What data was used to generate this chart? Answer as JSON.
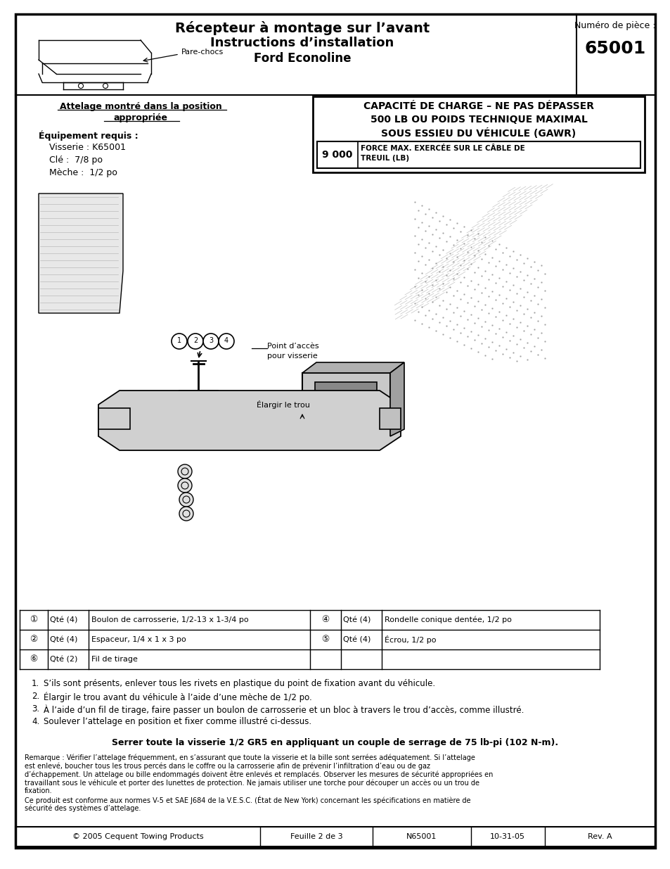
{
  "bg_color": "#ffffff",
  "border_color": "#000000",
  "header": {
    "title_line1": "Récepteur à montage sur l’avant",
    "title_line2": "Instructions d’installation",
    "title_line3": "Ford Econoline",
    "part_label": "Numéro de pièce :",
    "part_number": "65001"
  },
  "capacity_box": {
    "line1": "CAPACITÉ DE CHARGE – NE PAS DÉPASSER",
    "line2": "500 LB OU POIDS TECHNIQUE MAXIMAL",
    "line3": "SOUS ESSIEU DU VÉHICULE (GAWR)",
    "winch_label": "9 000",
    "winch_text_line1": "FORCE MAX. EXERCÉE SUR LE CÂBLE DE",
    "winch_text_line2": "TREUIL (LB)"
  },
  "left_section": {
    "hitch_line1": "Attelage montré dans la position",
    "hitch_line2": "appropriée",
    "equipment_title": "Équipement requis :",
    "equipment_items": [
      "Visserie : K65001",
      "Clé :  7/8 po",
      "Mèche :  1/2 po"
    ],
    "bumper_label": "Pare-chocs"
  },
  "parts_table": {
    "row_symbols": [
      "①",
      "②",
      "⑥"
    ],
    "row_qtys": [
      "Qté (4)",
      "Qté (4)",
      "Qté (2)"
    ],
    "row_descs": [
      "Boulon de carrosserie, 1/2-13 x 1-3/4 po",
      "Espaceur, 1/4 x 1 x 3 po",
      "Fil de tirage"
    ],
    "row_symbols2": [
      "④",
      "⑤",
      ""
    ],
    "row_qtys2": [
      "Qté (4)",
      "Qté (4)",
      ""
    ],
    "row_descs2": [
      "Rondelle conique dentée, 1/2 po",
      "Écrou, 1/2 po",
      ""
    ]
  },
  "instructions": [
    "S’ils sont présents, enlever tous les rivets en plastique du point de fixation avant du véhicule.",
    "Élargir le trou avant du véhicule à l’aide d’une mèche de 1/2 po.",
    "À l’aide d’un fil de tirage, faire passer un boulon de carrosserie et un bloc à travers le trou d’accès, comme illustré.",
    "Soulever l’attelage en position et fixer comme illustré ci-dessus."
  ],
  "torque_note": "Serrer toute la visserie 1/2 GR5 en appliquant un couple de serrage de 75 lb-pi (102 N-m).",
  "warning_para1": "Remarque : Vérifier l’attelage fréquemment, en s’assurant que toute la visserie et la bille sont serrées adéquatement.  Si l’attelage est enlevé, boucher tous les trous percés dans le coffre ou la carrosserie afin de prévenir l’infiltration d’eau ou de gaz d’échappement.  Un attelage ou bille endommagés doivent être enlevés et remplacés. Observer les mesures de sécurité appropriées en travaillant sous le véhicule et porter des lunettes de protection.  Ne jamais utiliser une torche pour découper un accès ou un trou de fixation.",
  "warning_para2": "Ce produit est conforme aux normes V-5 et SAE J684 de la V.E.S.C. (État de New York) concernant les spécifications en matière de sécurité des systèmes d’attelage.",
  "footer": {
    "copyright": "© 2005 Cequent Towing Products",
    "sheet": "Feuille 2 de 3",
    "part_num": "N65001",
    "date": "10-31-05",
    "rev": "Rev. A"
  },
  "diagram_annotations": {
    "point_acces_line1": "Point d’accès",
    "point_acces_line2": "pour visserie",
    "elargir": "Élargir le trou"
  }
}
